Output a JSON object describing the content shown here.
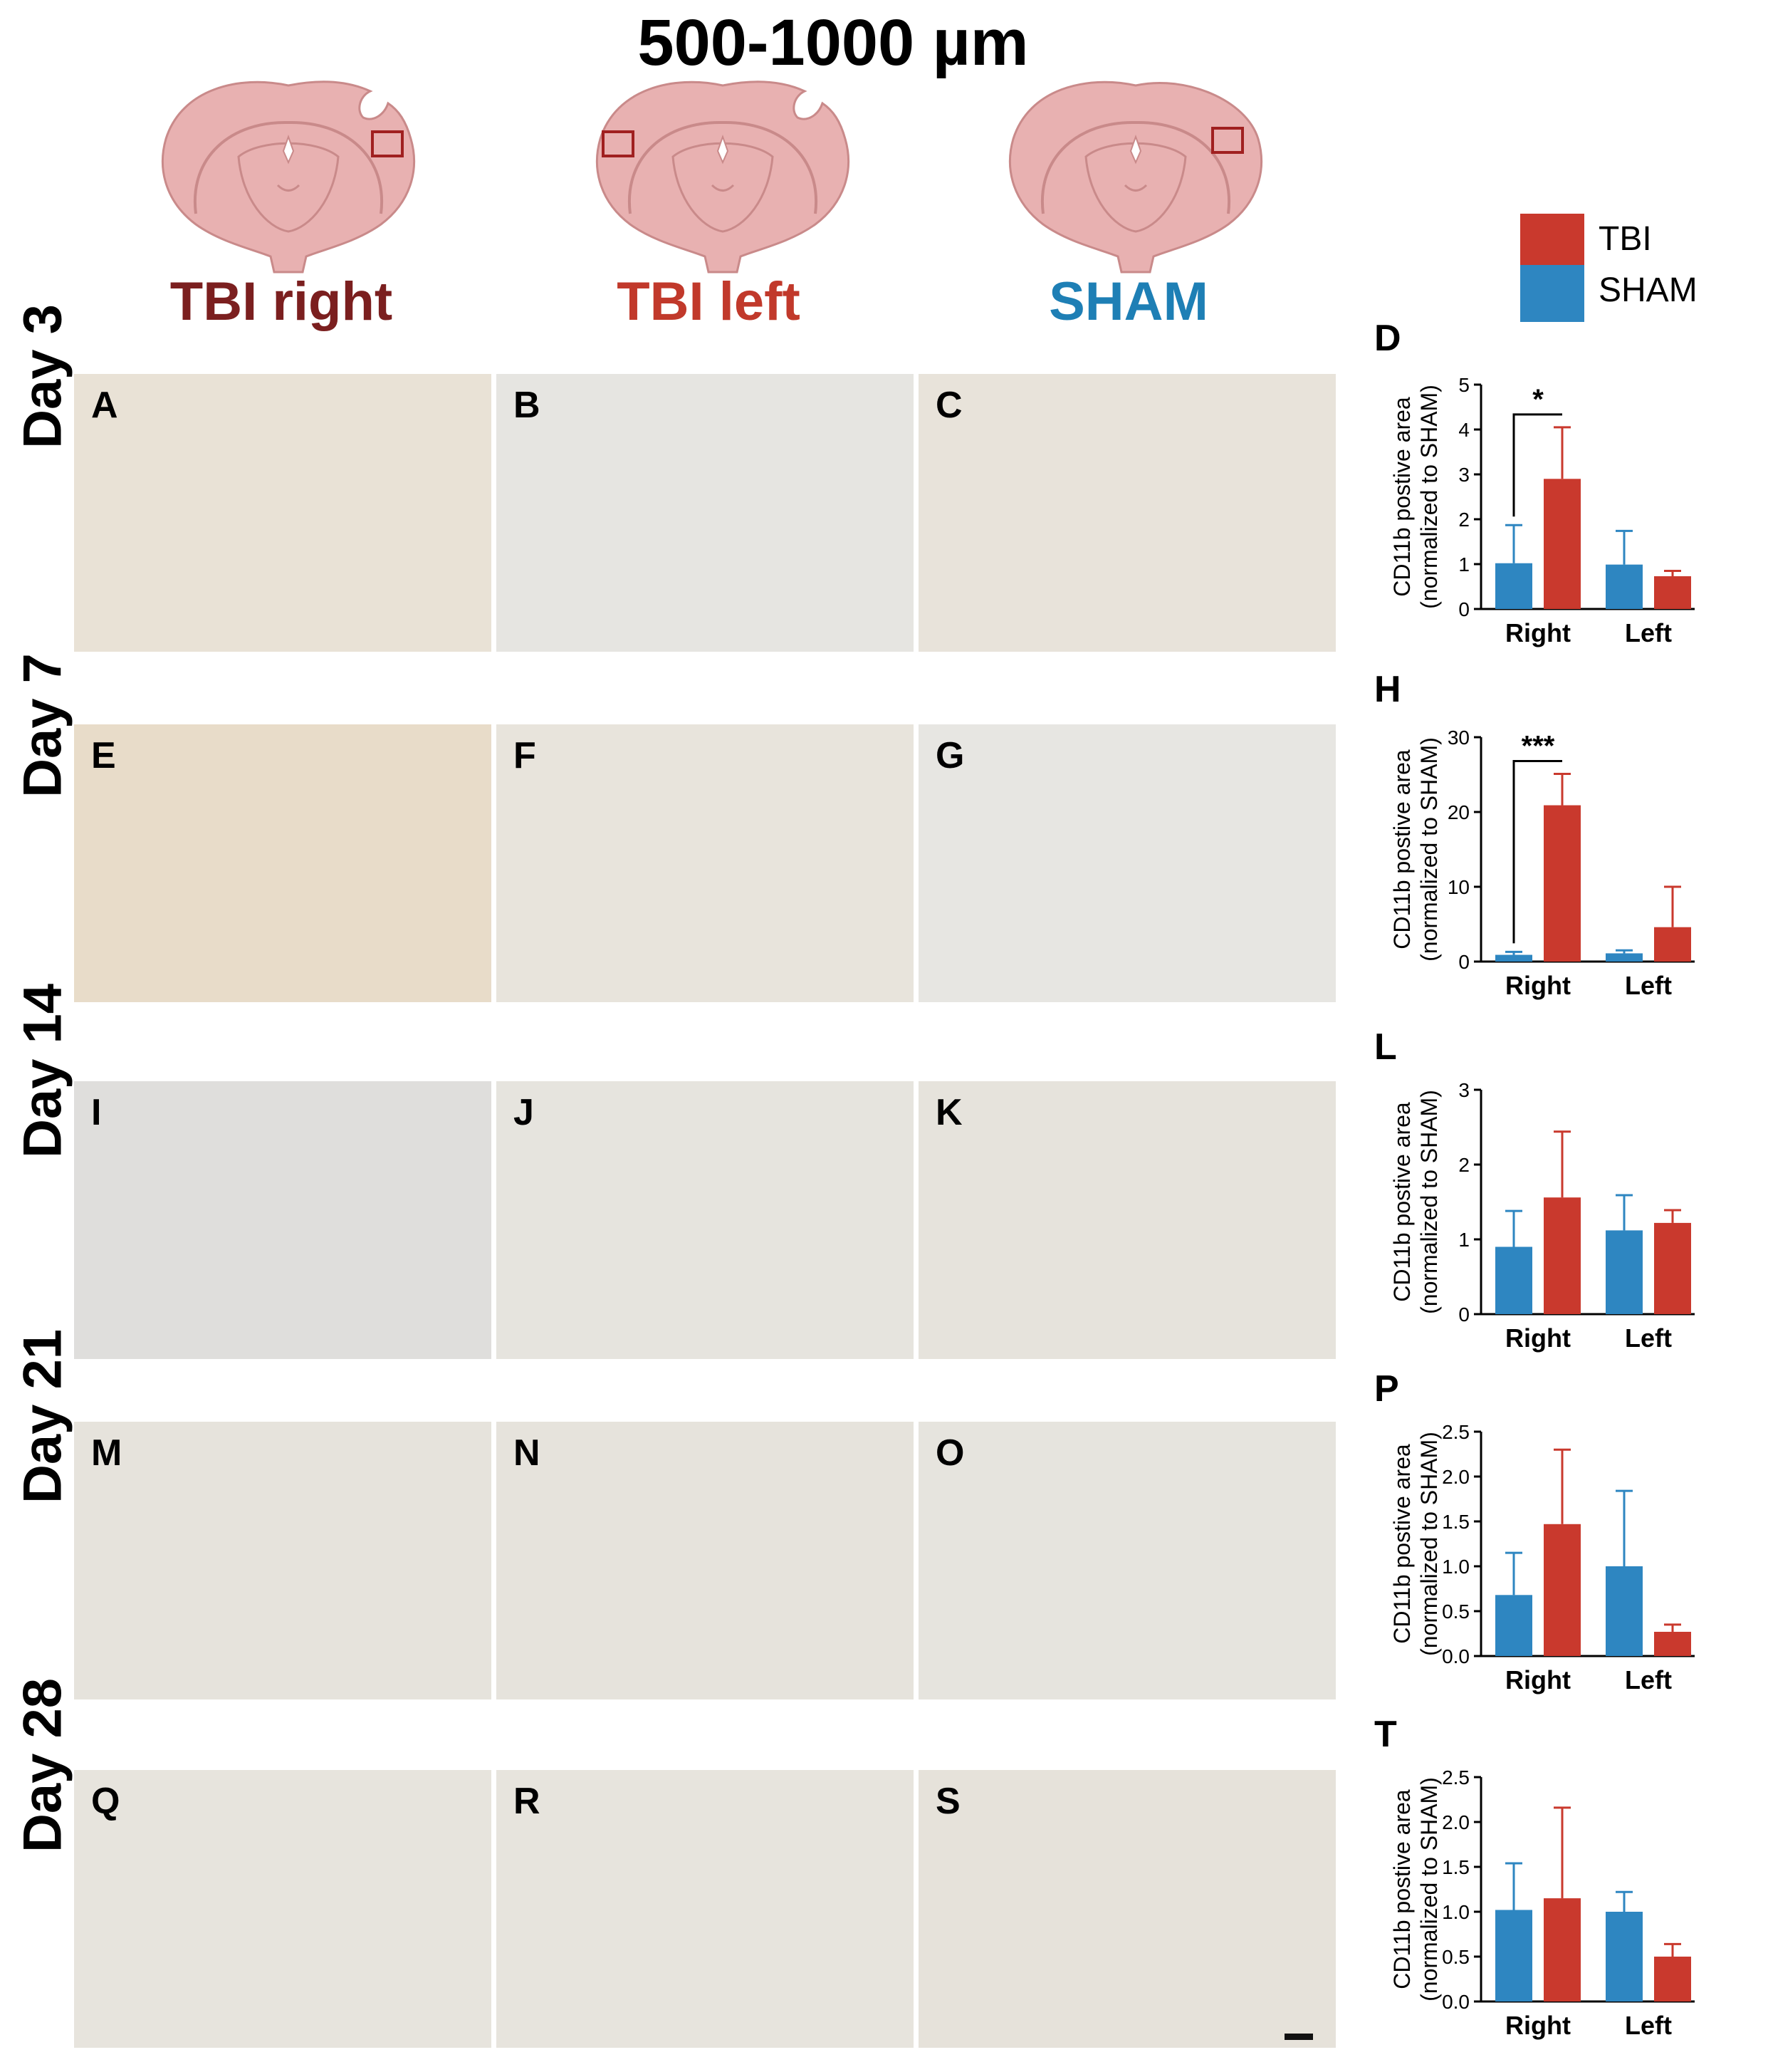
{
  "figure_title": "500-1000 µm",
  "columns": [
    {
      "label": "TBI right",
      "color": "#7b1f1f"
    },
    {
      "label": "TBI left",
      "color": "#c1392b"
    },
    {
      "label": "SHAM",
      "color": "#1e7fb5"
    }
  ],
  "rows": [
    {
      "label": "Day 3",
      "panels": [
        "A",
        "B",
        "C"
      ]
    },
    {
      "label": "Day 7",
      "panels": [
        "E",
        "F",
        "G"
      ]
    },
    {
      "label": "Day 14",
      "panels": [
        "I",
        "J",
        "K"
      ]
    },
    {
      "label": "Day 21",
      "panels": [
        "M",
        "N",
        "O"
      ]
    },
    {
      "label": "Day 28",
      "panels": [
        "Q",
        "R",
        "S"
      ]
    }
  ],
  "legend": [
    {
      "label": "TBI",
      "color": "#c9392d"
    },
    {
      "label": "SHAM",
      "color": "#2e86c1"
    }
  ],
  "colors": {
    "tbi": "#c9392d",
    "sham": "#2e86c1",
    "brain_fill": "#e8b1b1",
    "brain_line": "#c98a8a",
    "roi": "#a02020"
  },
  "chart_data": [
    {
      "panel": "D",
      "type": "bar",
      "categories": [
        "Right",
        "Left"
      ],
      "series": [
        {
          "name": "SHAM",
          "values": [
            1.02,
            0.99
          ],
          "errors": [
            0.85,
            0.75
          ]
        },
        {
          "name": "TBI",
          "values": [
            2.9,
            0.73
          ],
          "errors": [
            1.15,
            0.12
          ]
        }
      ],
      "ylabel": "CD11b postive area\n(normalized to SHAM)",
      "ylim": [
        0,
        5
      ],
      "yticks": [
        "0",
        "1",
        "2",
        "3",
        "4",
        "5"
      ],
      "significance": "*"
    },
    {
      "panel": "H",
      "type": "bar",
      "categories": [
        "Right",
        "Left"
      ],
      "series": [
        {
          "name": "SHAM",
          "values": [
            0.9,
            1.1
          ],
          "errors": [
            0.4,
            0.4
          ]
        },
        {
          "name": "TBI",
          "values": [
            20.9,
            4.6
          ],
          "errors": [
            4.2,
            5.4
          ]
        }
      ],
      "ylabel": "CD11b postive area\n(normalized to SHAM)",
      "ylim": [
        0,
        30
      ],
      "yticks": [
        "0",
        "10",
        "20",
        "30"
      ],
      "significance": "***"
    },
    {
      "panel": "L",
      "type": "bar",
      "categories": [
        "Right",
        "Left"
      ],
      "series": [
        {
          "name": "SHAM",
          "values": [
            0.9,
            1.12
          ],
          "errors": [
            0.48,
            0.47
          ]
        },
        {
          "name": "TBI",
          "values": [
            1.56,
            1.22
          ],
          "errors": [
            0.88,
            0.17
          ]
        }
      ],
      "ylabel": "CD11b postive area\n(normalized to SHAM)",
      "ylim": [
        0,
        3
      ],
      "yticks": [
        "0",
        "1",
        "2",
        "3"
      ],
      "significance": ""
    },
    {
      "panel": "P",
      "type": "bar",
      "categories": [
        "Right",
        "Left"
      ],
      "series": [
        {
          "name": "SHAM",
          "values": [
            0.68,
            1.0
          ],
          "errors": [
            0.47,
            0.84
          ]
        },
        {
          "name": "TBI",
          "values": [
            1.47,
            0.27
          ],
          "errors": [
            0.83,
            0.08
          ]
        }
      ],
      "ylabel": "CD11b postive area\n(normalized to SHAM)",
      "ylim": [
        0,
        2.5
      ],
      "yticks": [
        "0.0",
        "0.5",
        "1.0",
        "1.5",
        "2.0",
        "2.5"
      ],
      "significance": ""
    },
    {
      "panel": "T",
      "type": "bar",
      "categories": [
        "Right",
        "Left"
      ],
      "series": [
        {
          "name": "SHAM",
          "values": [
            1.02,
            1.0
          ],
          "errors": [
            0.52,
            0.22
          ]
        },
        {
          "name": "TBI",
          "values": [
            1.15,
            0.5
          ],
          "errors": [
            1.01,
            0.14
          ]
        }
      ],
      "ylabel": "CD11b postive area\n(normalized to SHAM)",
      "ylim": [
        0,
        2.5
      ],
      "yticks": [
        "0.0",
        "0.5",
        "1.0",
        "1.5",
        "2.0",
        "2.5"
      ],
      "significance": ""
    }
  ]
}
